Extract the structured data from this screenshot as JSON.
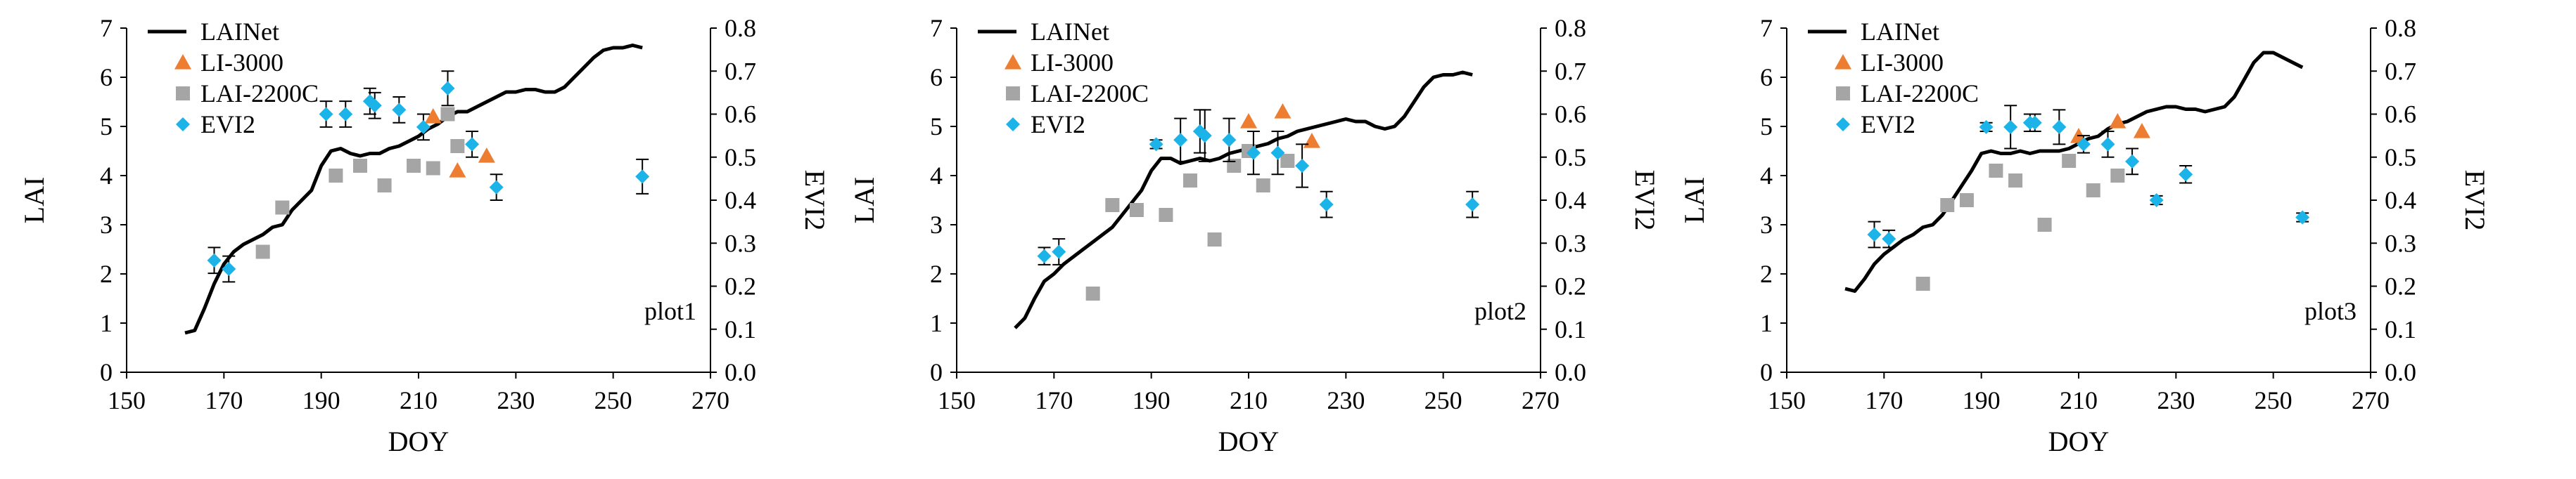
{
  "chart_data": [
    {
      "type": "scatter",
      "panel_label": "plot1",
      "xlabel": "DOY",
      "ylabel": "LAI",
      "y2label": "EVI2",
      "xlim": [
        150,
        270
      ],
      "ylim": [
        0,
        7
      ],
      "y2lim": [
        0,
        0.8
      ],
      "xticks": [
        "150",
        "170",
        "190",
        "210",
        "230",
        "250",
        "270"
      ],
      "yticks": [
        "0",
        "1",
        "2",
        "3",
        "4",
        "5",
        "6",
        "7"
      ],
      "y2ticks": [
        "0.0",
        "0.1",
        "0.2",
        "0.3",
        "0.4",
        "0.5",
        "0.6",
        "0.7",
        "0.8"
      ],
      "legend": [
        "LAINet",
        "LI-3000",
        "LAI-2200C",
        "EVI2"
      ],
      "series": [
        {
          "name": "LAINet",
          "type": "line",
          "axis": "left",
          "color": "#000000",
          "x": [
            162,
            164,
            166,
            168,
            170,
            172,
            174,
            176,
            178,
            180,
            182,
            184,
            186,
            188,
            190,
            192,
            194,
            196,
            198,
            200,
            202,
            204,
            206,
            208,
            210,
            212,
            214,
            216,
            218,
            220,
            222,
            224,
            226,
            228,
            230,
            232,
            234,
            236,
            238,
            240,
            242,
            244,
            246,
            248,
            250,
            252,
            254,
            256
          ],
          "y": [
            0.8,
            0.85,
            1.3,
            1.8,
            2.2,
            2.45,
            2.6,
            2.7,
            2.8,
            2.95,
            3.0,
            3.3,
            3.5,
            3.7,
            4.2,
            4.5,
            4.55,
            4.45,
            4.4,
            4.45,
            4.45,
            4.55,
            4.6,
            4.7,
            4.8,
            4.95,
            5.05,
            5.2,
            5.3,
            5.3,
            5.4,
            5.5,
            5.6,
            5.7,
            5.7,
            5.75,
            5.75,
            5.7,
            5.7,
            5.8,
            6.0,
            6.2,
            6.4,
            6.55,
            6.6,
            6.6,
            6.65,
            6.6
          ]
        },
        {
          "name": "LI-3000",
          "type": "scatter",
          "axis": "left",
          "marker": "triangle",
          "color": "#ED7D31",
          "x": [
            213,
            218,
            224
          ],
          "y": [
            5.2,
            4.1,
            4.4
          ]
        },
        {
          "name": "LAI-2200C",
          "type": "scatter",
          "axis": "left",
          "marker": "square",
          "color": "#A5A5A5",
          "x": [
            178,
            182,
            193,
            198,
            203,
            209,
            213,
            216,
            218
          ],
          "y": [
            2.45,
            3.35,
            4.0,
            4.2,
            3.8,
            4.2,
            4.15,
            5.25,
            4.6
          ]
        },
        {
          "name": "EVI2",
          "type": "scatter",
          "axis": "right",
          "marker": "diamond",
          "color": "#1CB4E8",
          "x": [
            168,
            171,
            191,
            195,
            200,
            201,
            206,
            211,
            216,
            221,
            226,
            256
          ],
          "y": [
            0.26,
            0.24,
            0.6,
            0.6,
            0.63,
            0.62,
            0.61,
            0.57,
            0.66,
            0.53,
            0.43,
            0.455
          ],
          "err": [
            0.03,
            0.03,
            0.03,
            0.03,
            0.03,
            0.03,
            0.03,
            0.03,
            0.04,
            0.03,
            0.03,
            0.04
          ]
        }
      ]
    },
    {
      "type": "scatter",
      "panel_label": "plot2",
      "xlabel": "DOY",
      "ylabel": "LAI",
      "y2label": "EVI2",
      "xlim": [
        150,
        270
      ],
      "ylim": [
        0,
        7
      ],
      "y2lim": [
        0,
        0.8
      ],
      "xticks": [
        "150",
        "170",
        "190",
        "210",
        "230",
        "250",
        "270"
      ],
      "yticks": [
        "0",
        "1",
        "2",
        "3",
        "4",
        "5",
        "6",
        "7"
      ],
      "y2ticks": [
        "0.0",
        "0.1",
        "0.2",
        "0.3",
        "0.4",
        "0.5",
        "0.6",
        "0.7",
        "0.8"
      ],
      "legend": [
        "LAINet",
        "LI-3000",
        "LAI-2200C",
        "EVI2"
      ],
      "series": [
        {
          "name": "LAINet",
          "type": "line",
          "axis": "left",
          "color": "#000000",
          "x": [
            162,
            164,
            166,
            168,
            170,
            172,
            174,
            176,
            178,
            180,
            182,
            184,
            186,
            188,
            190,
            192,
            194,
            196,
            198,
            200,
            202,
            204,
            206,
            208,
            210,
            212,
            214,
            216,
            218,
            220,
            222,
            224,
            226,
            228,
            230,
            232,
            234,
            236,
            238,
            240,
            242,
            244,
            246,
            248,
            250,
            252,
            254,
            256
          ],
          "y": [
            0.9,
            1.1,
            1.5,
            1.85,
            2.0,
            2.2,
            2.35,
            2.5,
            2.65,
            2.8,
            2.95,
            3.2,
            3.45,
            3.7,
            4.1,
            4.35,
            4.35,
            4.25,
            4.3,
            4.35,
            4.3,
            4.35,
            4.45,
            4.5,
            4.55,
            4.6,
            4.65,
            4.75,
            4.8,
            4.9,
            4.95,
            5.0,
            5.05,
            5.1,
            5.15,
            5.1,
            5.1,
            5.0,
            4.95,
            5.0,
            5.2,
            5.5,
            5.8,
            6.0,
            6.05,
            6.05,
            6.1,
            6.05
          ]
        },
        {
          "name": "LI-3000",
          "type": "scatter",
          "axis": "left",
          "marker": "triangle",
          "color": "#ED7D31",
          "x": [
            210,
            217,
            223
          ],
          "y": [
            5.1,
            5.3,
            4.7
          ]
        },
        {
          "name": "LAI-2200C",
          "type": "scatter",
          "axis": "left",
          "marker": "square",
          "color": "#A5A5A5",
          "x": [
            178,
            182,
            187,
            193,
            198,
            203,
            207,
            210,
            213,
            218
          ],
          "y": [
            1.6,
            3.4,
            3.3,
            3.2,
            3.9,
            2.7,
            4.2,
            4.5,
            3.8,
            4.3
          ]
        },
        {
          "name": "EVI2",
          "type": "scatter",
          "axis": "right",
          "marker": "diamond",
          "color": "#1CB4E8",
          "x": [
            168,
            171,
            191,
            196,
            200,
            201,
            206,
            211,
            216,
            221,
            226,
            256
          ],
          "y": [
            0.27,
            0.28,
            0.53,
            0.54,
            0.56,
            0.55,
            0.54,
            0.51,
            0.51,
            0.48,
            0.39,
            0.39
          ],
          "err": [
            0.02,
            0.03,
            0.01,
            0.05,
            0.05,
            0.06,
            0.05,
            0.05,
            0.05,
            0.05,
            0.03,
            0.03
          ]
        }
      ]
    },
    {
      "type": "scatter",
      "panel_label": "plot3",
      "xlabel": "DOY",
      "ylabel": "LAI",
      "y2label": "EVI2",
      "xlim": [
        150,
        270
      ],
      "ylim": [
        0,
        7
      ],
      "y2lim": [
        0,
        0.8
      ],
      "xticks": [
        "150",
        "170",
        "190",
        "210",
        "230",
        "250",
        "270"
      ],
      "yticks": [
        "0",
        "1",
        "2",
        "3",
        "4",
        "5",
        "6",
        "7"
      ],
      "y2ticks": [
        "0.0",
        "0.1",
        "0.2",
        "0.3",
        "0.4",
        "0.5",
        "0.6",
        "0.7",
        "0.8"
      ],
      "legend": [
        "LAINet",
        "LI-3000",
        "LAI-2200C",
        "EVI2"
      ],
      "series": [
        {
          "name": "LAINet",
          "type": "line",
          "axis": "left",
          "color": "#000000",
          "x": [
            162,
            164,
            166,
            168,
            170,
            172,
            174,
            176,
            178,
            180,
            182,
            184,
            186,
            188,
            190,
            192,
            194,
            196,
            198,
            200,
            202,
            204,
            206,
            208,
            210,
            212,
            214,
            216,
            218,
            220,
            222,
            224,
            226,
            228,
            230,
            232,
            234,
            236,
            238,
            240,
            242,
            244,
            246,
            248,
            250,
            252,
            254,
            256
          ],
          "y": [
            1.7,
            1.65,
            1.9,
            2.2,
            2.4,
            2.55,
            2.7,
            2.8,
            2.95,
            3.0,
            3.2,
            3.5,
            3.8,
            4.1,
            4.45,
            4.5,
            4.45,
            4.45,
            4.5,
            4.45,
            4.5,
            4.5,
            4.5,
            4.55,
            4.65,
            4.75,
            4.8,
            4.95,
            5.05,
            5.1,
            5.2,
            5.3,
            5.35,
            5.4,
            5.4,
            5.35,
            5.35,
            5.3,
            5.35,
            5.4,
            5.6,
            5.95,
            6.3,
            6.5,
            6.5,
            6.4,
            6.3,
            6.2
          ]
        },
        {
          "name": "LI-3000",
          "type": "scatter",
          "axis": "left",
          "marker": "triangle",
          "color": "#ED7D31",
          "x": [
            210,
            218,
            223
          ],
          "y": [
            4.8,
            5.1,
            4.9
          ]
        },
        {
          "name": "LAI-2200C",
          "type": "scatter",
          "axis": "left",
          "marker": "square",
          "color": "#A5A5A5",
          "x": [
            178,
            183,
            187,
            193,
            197,
            203,
            208,
            213,
            218
          ],
          "y": [
            1.8,
            3.4,
            3.5,
            4.1,
            3.9,
            3.0,
            4.3,
            3.7,
            4.0
          ]
        },
        {
          "name": "EVI2",
          "type": "scatter",
          "axis": "right",
          "marker": "diamond",
          "color": "#1CB4E8",
          "x": [
            168,
            171,
            191,
            196,
            200,
            201,
            206,
            211,
            216,
            221,
            226,
            232,
            256
          ],
          "y": [
            0.32,
            0.31,
            0.57,
            0.57,
            0.58,
            0.58,
            0.57,
            0.53,
            0.53,
            0.49,
            0.4,
            0.46,
            0.36
          ],
          "err": [
            0.03,
            0.02,
            0.01,
            0.05,
            0.02,
            0.02,
            0.04,
            0.02,
            0.03,
            0.03,
            0.01,
            0.02,
            0.01
          ]
        }
      ]
    }
  ]
}
